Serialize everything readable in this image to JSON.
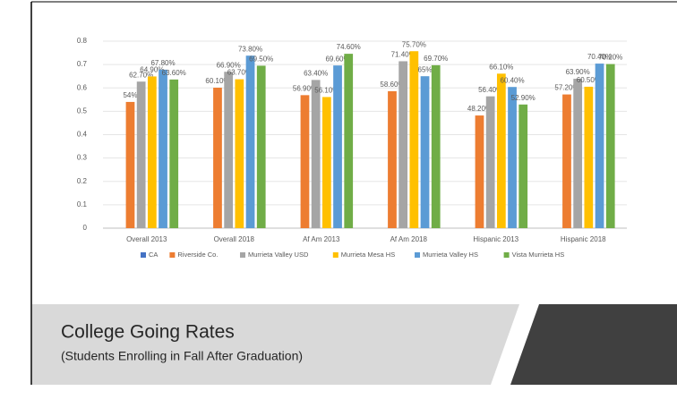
{
  "slide": {
    "title": "College Going Rates",
    "subtitle": "(Students Enrolling in Fall After Graduation)"
  },
  "chart_data": {
    "type": "bar",
    "categories": [
      "Overall 2013",
      "Overall 2018",
      "Af Am 2013",
      "Af Am 2018",
      "Hispanic 2013",
      "Hispanic 2018"
    ],
    "ylim": [
      0,
      0.8
    ],
    "yticks": [
      0,
      0.1,
      0.2,
      0.3,
      0.4,
      0.5,
      0.6,
      0.7,
      0.8
    ],
    "grid": true,
    "legend": "bottom",
    "series": [
      {
        "name": "CA",
        "color": "#4472c4",
        "values": [
          null,
          null,
          null,
          null,
          null,
          null
        ],
        "value_labels": [
          null,
          null,
          null,
          null,
          null,
          null
        ]
      },
      {
        "name": "Riverside Co.",
        "color": "#ed7d31",
        "values": [
          0.54,
          0.601,
          0.569,
          0.586,
          0.482,
          0.572
        ],
        "value_labels": [
          "54%",
          "60.10%",
          "56.90%",
          "58.60%",
          "48.20%",
          "57.20%"
        ]
      },
      {
        "name": "Murrieta Valley USD",
        "color": "#a5a5a5",
        "values": [
          0.627,
          0.669,
          0.634,
          0.714,
          0.564,
          0.639
        ],
        "value_labels": [
          "62.70%",
          "66.90%",
          "63.40%",
          "71.40%",
          "56.40%",
          "63.90%"
        ]
      },
      {
        "name": "Murrieta Mesa HS",
        "color": "#ffc000",
        "values": [
          0.649,
          0.637,
          0.561,
          0.757,
          0.661,
          0.605
        ],
        "value_labels": [
          "64.90%",
          "63.70%",
          "56.10%",
          "75.70%",
          "66.10%",
          "60.50%"
        ]
      },
      {
        "name": "Murrieta Valley HS",
        "color": "#5b9bd5",
        "values": [
          0.678,
          0.738,
          0.696,
          0.65,
          0.604,
          0.704
        ],
        "value_labels": [
          "67.80%",
          "73.80%",
          "69.60%",
          "65%",
          "60.40%",
          "70.40%"
        ]
      },
      {
        "name": "Vista Murrieta HS",
        "color": "#70ad47",
        "values": [
          0.636,
          0.695,
          0.746,
          0.697,
          0.529,
          0.702
        ],
        "value_labels": [
          "63.60%",
          "69.50%",
          "74.60%",
          "69.70%",
          "52.90%",
          "70.20%"
        ]
      }
    ]
  }
}
